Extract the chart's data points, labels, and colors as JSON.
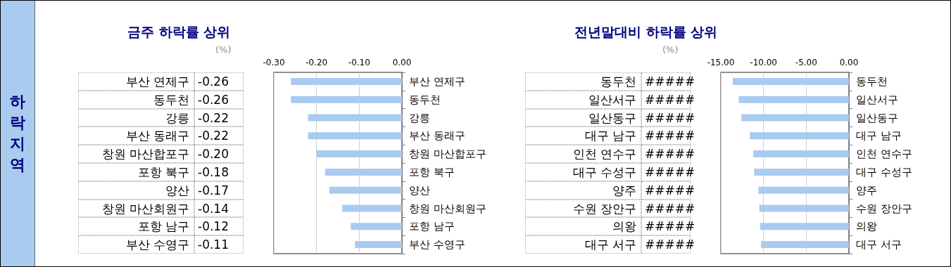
{
  "chart_data": [
    {
      "type": "other",
      "title": "하락지역"
    },
    {
      "type": "bar",
      "orientation": "horizontal",
      "title": "금주 하락률 상위",
      "annotations": [
        "(%)"
      ],
      "grid": "x",
      "color": "#a9cbf0",
      "categories": [
        "부산 연제구",
        "동두천",
        "강릉",
        "부산 동래구",
        "창원 마산합포구",
        "포항 북구",
        "양산",
        "창원 마산회원구",
        "포항 남구",
        "부산 수영구"
      ],
      "values": [
        -0.26,
        -0.26,
        -0.22,
        -0.22,
        -0.2,
        -0.18,
        -0.17,
        -0.14,
        -0.12,
        -0.11
      ],
      "value_labels": [
        "-0.26",
        "-0.26",
        "-0.22",
        "-0.22",
        "-0.20",
        "-0.18",
        "-0.17",
        "-0.14",
        "-0.12",
        "-0.11"
      ],
      "xlim": [
        -0.3,
        0
      ],
      "xticks": [
        {
          "value": -0.3,
          "label": "-0.30"
        },
        {
          "value": -0.2,
          "label": "-0.20"
        },
        {
          "value": -0.1,
          "label": "-0.10"
        },
        {
          "value": 0,
          "label": "0.00"
        }
      ]
    },
    {
      "type": "bar",
      "orientation": "horizontal",
      "title": "전년말대비 하락률 상위",
      "annotations": [
        "(%)"
      ],
      "grid": "x",
      "color": "#a9cbf0",
      "categories": [
        "동두천",
        "일산서구",
        "일산동구",
        "대구 남구",
        "인천 연수구",
        "대구 수성구",
        "양주",
        "수원 장안구",
        "의왕",
        "대구 서구"
      ],
      "values": [
        -13.6,
        -12.9,
        -12.6,
        -11.6,
        -11.2,
        -11.1,
        -10.6,
        -10.5,
        -10.4,
        -10.3
      ],
      "value_labels": [
        "#####",
        "#####",
        "#####",
        "#####",
        "#####",
        "#####",
        "#####",
        "#####",
        "#####",
        "#####"
      ],
      "xlim": [
        -15,
        0
      ],
      "xticks": [
        {
          "value": -15,
          "label": "-15.00"
        },
        {
          "value": -10,
          "label": "-10.00"
        },
        {
          "value": -5,
          "label": "-5.00"
        },
        {
          "value": 0,
          "label": "0.00"
        }
      ]
    }
  ]
}
